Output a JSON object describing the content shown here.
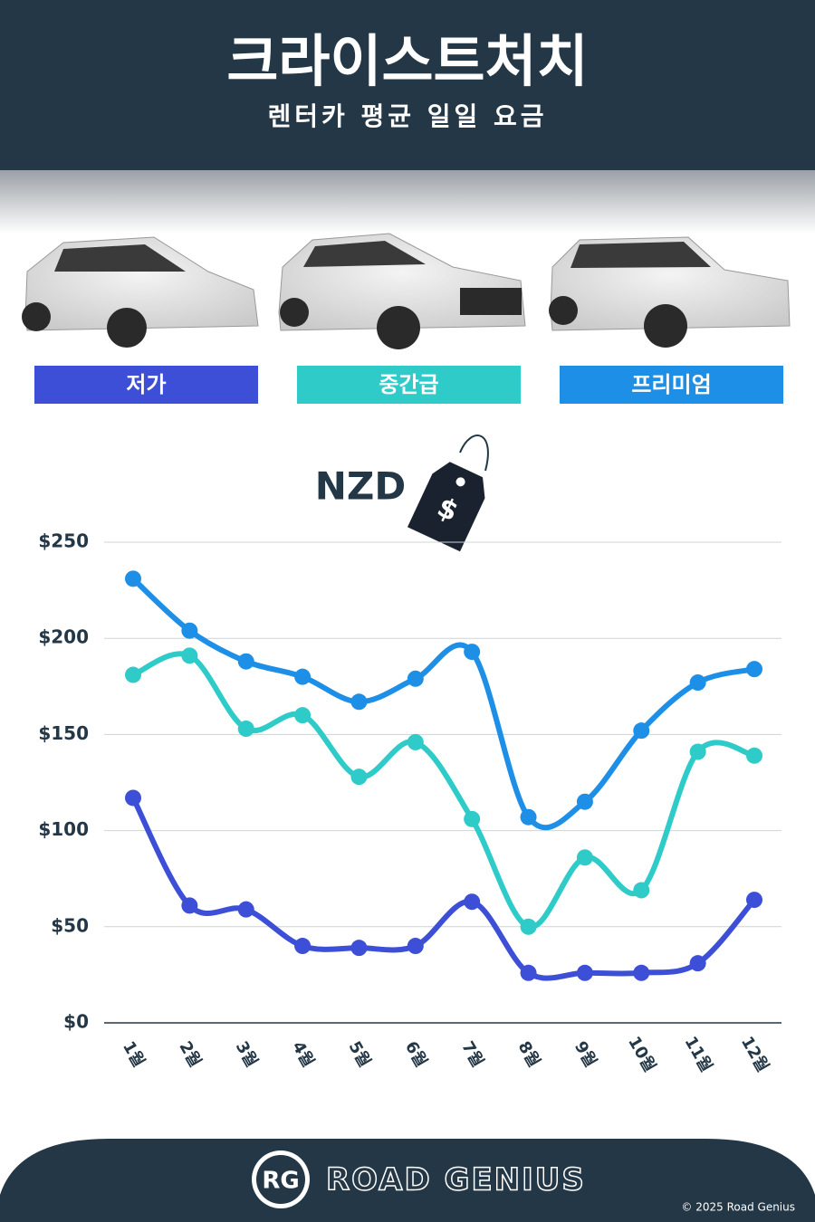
{
  "header": {
    "title": "크라이스트처치",
    "subtitle": "렌터카 평균 일일 요금"
  },
  "chart_data": {
    "type": "line",
    "currency": "NZD",
    "tag_symbol": "$",
    "categories": [
      "1월",
      "2월",
      "3월",
      "4월",
      "5월",
      "6월",
      "7월",
      "8월",
      "9월",
      "10월",
      "11월",
      "12월"
    ],
    "series": [
      {
        "name": "저가",
        "color": "#3d4fd6",
        "values": [
          117,
          61,
          59,
          40,
          39,
          40,
          63,
          26,
          26,
          26,
          31,
          64
        ]
      },
      {
        "name": "중간급",
        "color": "#2ecbc8",
        "values": [
          181,
          191,
          153,
          160,
          128,
          146,
          106,
          50,
          86,
          69,
          141,
          139
        ]
      },
      {
        "name": "프리미엄",
        "color": "#1e8fe6",
        "values": [
          231,
          204,
          188,
          180,
          167,
          179,
          193,
          107,
          115,
          152,
          177,
          184
        ]
      }
    ],
    "ylim": [
      0,
      250
    ],
    "yticks": [
      {
        "value": 0,
        "label": "$0"
      },
      {
        "value": 50,
        "label": "$50"
      },
      {
        "value": 100,
        "label": "$100"
      },
      {
        "value": 150,
        "label": "$150"
      },
      {
        "value": 200,
        "label": "$200"
      },
      {
        "value": 250,
        "label": "$250"
      }
    ],
    "grid": true
  },
  "footer": {
    "logo": "RG",
    "brand": "ROAD GENIUS",
    "copyright": "© 2025 Road Genius"
  }
}
